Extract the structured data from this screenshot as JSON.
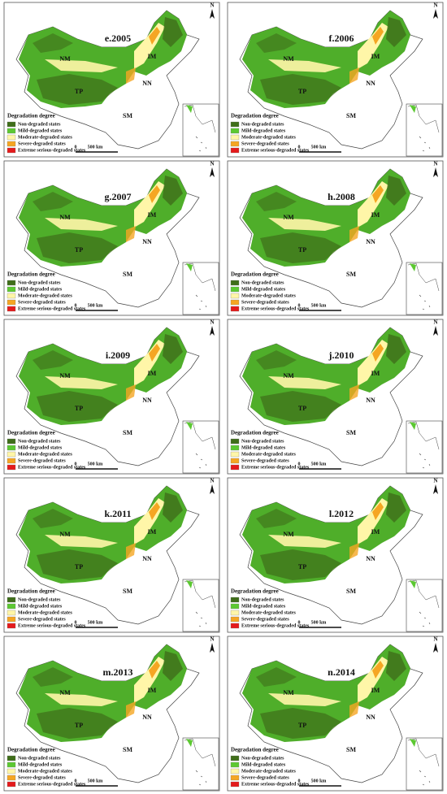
{
  "north": "N",
  "regions": [
    "NM",
    "IM",
    "TP",
    "NN",
    "SM"
  ],
  "scale": {
    "zero": "0",
    "distance": "500 km"
  },
  "legend": {
    "title": "Degradation degree",
    "items": [
      {
        "label": "Non-degraded states",
        "color": "#3f6e1a"
      },
      {
        "label": "Mild-degraded states",
        "color": "#5cc832"
      },
      {
        "label": "Moderate-degraded states",
        "color": "#fff6a8"
      },
      {
        "label": "Severe-degraded states",
        "color": "#f5a623"
      },
      {
        "label": "Extreme serious-degraded states",
        "color": "#e41a1c"
      }
    ]
  },
  "panels": [
    {
      "title": "e.2005"
    },
    {
      "title": "f.2006"
    },
    {
      "title": "g.2007"
    },
    {
      "title": "h.2008"
    },
    {
      "title": "i.2009"
    },
    {
      "title": "j.2010"
    },
    {
      "title": "k.2011"
    },
    {
      "title": "l.2012"
    },
    {
      "title": "m.2013"
    },
    {
      "title": "n.2014"
    }
  ]
}
